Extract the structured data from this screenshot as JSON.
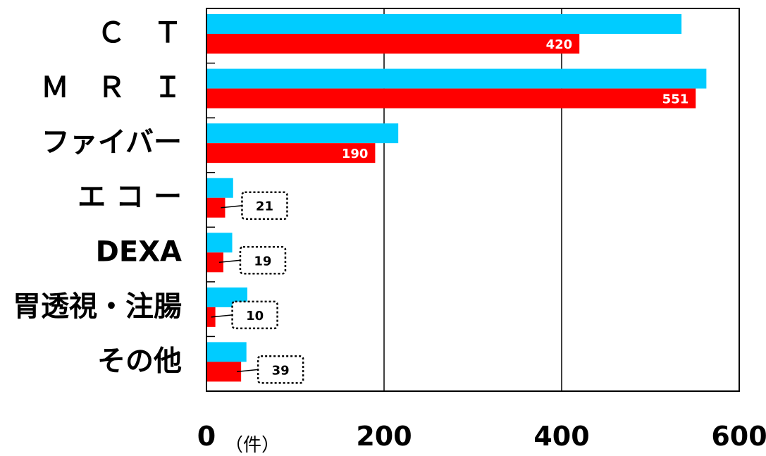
{
  "chart_data": {
    "type": "bar",
    "orientation": "horizontal",
    "categories": [
      "Ｃ　Ｔ",
      "Ｍ　Ｒ　Ｉ",
      "ファイバー",
      "エ コ ー",
      "DEXA",
      "胃透視・注腸",
      "その他"
    ],
    "series": [
      {
        "color": "#00CCFF",
        "values": [
          535,
          563,
          216,
          30,
          29,
          46,
          45
        ]
      },
      {
        "color": "#FF0000",
        "values": [
          420,
          551,
          190,
          21,
          19,
          10,
          39
        ],
        "labels": [
          "420",
          "551",
          "190",
          "21",
          "19",
          "10",
          "39"
        ]
      }
    ],
    "xlim": [
      0,
      600
    ],
    "xticks": [
      "0",
      "200",
      "400",
      "600"
    ],
    "unit": "（件）",
    "grid": true
  }
}
